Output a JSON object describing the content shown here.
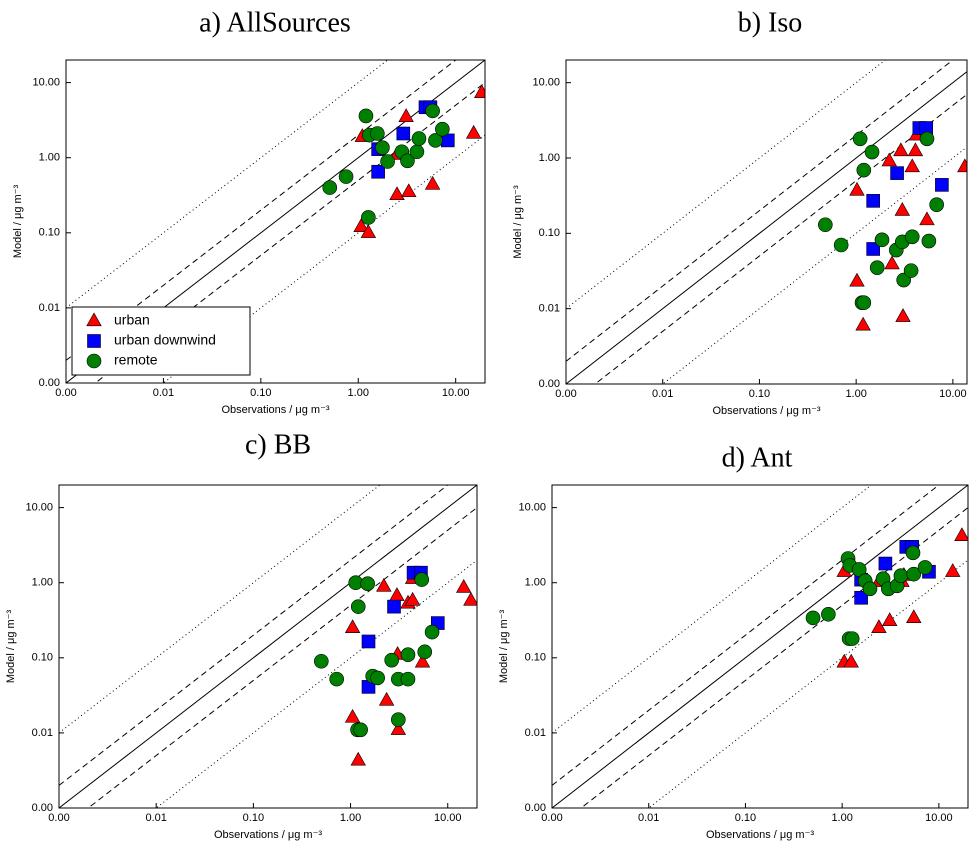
{
  "chart_data": [
    {
      "type": "scatter",
      "title": "a) AllSources",
      "x_label": "Observations / μg m⁻³",
      "y_label": "Model / μg m⁻³",
      "xscale": "log",
      "yscale": "log",
      "xlim": [
        0.001,
        20
      ],
      "ylim": [
        0.001,
        20
      ],
      "xticks": [
        {
          "value": 0.001,
          "label": "0.00"
        },
        0.01,
        {
          "value": 0.1,
          "label": "0.10"
        },
        {
          "value": 1,
          "label": "1.00"
        },
        {
          "value": 10,
          "label": "10.00"
        }
      ],
      "yticks": [
        {
          "value": 0.001,
          "label": "0.00"
        },
        0.01,
        {
          "value": 0.1,
          "label": "0.10"
        },
        {
          "value": 1,
          "label": "1.00"
        },
        {
          "value": 10,
          "label": "10.00"
        }
      ],
      "reference_lines": [
        {
          "ratio": 1,
          "style": "solid"
        },
        {
          "ratio": 2,
          "style": "dashed"
        },
        {
          "ratio": 0.5,
          "style": "dashed"
        },
        {
          "ratio": 10,
          "style": "dotted"
        },
        {
          "ratio": 0.1,
          "style": "dotted"
        }
      ],
      "legend": "lower left",
      "series": [
        {
          "name": "urban",
          "color": "#ff0000",
          "marker": "triangle",
          "x": [
            1.1,
            1.07,
            1.27,
            2.5,
            3.1,
            2.5,
            3.3,
            5.8,
            15.3,
            18.5
          ],
          "y": [
            1.9,
            0.12,
            0.1,
            1.1,
            3.5,
            0.32,
            0.35,
            0.44,
            2.1,
            7.3
          ]
        },
        {
          "name": "urban downwind",
          "color": "#0000ff",
          "marker": "square",
          "x": [
            4.9,
            5.5,
            1.6,
            1.6,
            2.9,
            8.3
          ],
          "y": [
            4.7,
            4.7,
            1.3,
            0.65,
            2.1,
            1.7
          ]
        },
        {
          "name": "remote",
          "color": "#008000",
          "marker": "circle",
          "x": [
            0.51,
            0.75,
            1.2,
            1.3,
            1.57,
            1.77,
            2.0,
            1.27,
            2.8,
            3.2,
            4.0,
            4.2,
            5.8,
            6.2,
            7.3
          ],
          "y": [
            0.4,
            0.56,
            3.6,
            2.0,
            2.1,
            1.36,
            0.89,
            0.16,
            1.2,
            0.91,
            1.2,
            1.8,
            4.2,
            1.7,
            2.4
          ]
        }
      ]
    },
    {
      "type": "scatter",
      "title": "b) Iso",
      "x_label": "Observations / μg m⁻³",
      "y_label": "Model / μg m⁻³",
      "xscale": "log",
      "yscale": "log",
      "xlim": [
        0.001,
        14
      ],
      "ylim": [
        0.001,
        20
      ],
      "xticks": [
        {
          "value": 0.001,
          "label": "0.00"
        },
        0.01,
        {
          "value": 0.1,
          "label": "0.10"
        },
        {
          "value": 1,
          "label": "1.00"
        },
        {
          "value": 10,
          "label": "10.00"
        }
      ],
      "yticks": [
        {
          "value": 0.001,
          "label": "0.00"
        },
        0.01,
        {
          "value": 0.1,
          "label": "0.10"
        },
        {
          "value": 1,
          "label": "1.00"
        },
        {
          "value": 10,
          "label": "10.00"
        }
      ],
      "reference_lines": [
        {
          "ratio": 1,
          "style": "solid"
        },
        {
          "ratio": 2,
          "style": "dashed"
        },
        {
          "ratio": 0.5,
          "style": "dashed"
        },
        {
          "ratio": 10,
          "style": "dotted"
        },
        {
          "ratio": 0.1,
          "style": "dotted"
        }
      ],
      "series": [
        {
          "color": "#ff0000",
          "marker": "triangle",
          "x": [
            1.02,
            1.02,
            1.18,
            2.2,
            2.9,
            3.0,
            3.05,
            2.35,
            3.8,
            4.1,
            4.2,
            5.4,
            13.3
          ],
          "y": [
            0.37,
            0.023,
            0.006,
            0.91,
            1.24,
            0.2,
            0.0078,
            0.039,
            0.76,
            1.24,
            2.0,
            0.15,
            0.76
          ]
        },
        {
          "color": "#0000ff",
          "marker": "square",
          "x": [
            1.5,
            1.5,
            2.65,
            4.5,
            5.3,
            7.7
          ],
          "y": [
            0.27,
            0.062,
            0.63,
            2.5,
            2.5,
            0.44
          ]
        },
        {
          "color": "#008000",
          "marker": "circle",
          "x": [
            0.48,
            0.7,
            1.1,
            1.2,
            1.46,
            1.65,
            1.85,
            1.15,
            1.2,
            2.6,
            3.0,
            3.1,
            3.8,
            3.7,
            5.4,
            5.65,
            6.8
          ],
          "y": [
            0.13,
            0.07,
            1.8,
            0.69,
            1.2,
            0.035,
            0.082,
            0.012,
            0.012,
            0.06,
            0.077,
            0.024,
            0.09,
            0.032,
            1.8,
            0.079,
            0.24
          ]
        }
      ]
    },
    {
      "type": "scatter",
      "title": "c) BB",
      "x_label": "Observations / μg m⁻³",
      "y_label": "Model / μg m⁻³",
      "xscale": "log",
      "yscale": "log",
      "xlim": [
        0.001,
        20
      ],
      "ylim": [
        0.001,
        20
      ],
      "xticks": [
        {
          "value": 0.001,
          "label": "0.00"
        },
        0.01,
        {
          "value": 0.1,
          "label": "0.10"
        },
        {
          "value": 1,
          "label": "1.00"
        },
        {
          "value": 10,
          "label": "10.00"
        }
      ],
      "yticks": [
        {
          "value": 0.001,
          "label": "0.00"
        },
        0.01,
        {
          "value": 0.1,
          "label": "0.10"
        },
        {
          "value": 1,
          "label": "1.00"
        },
        {
          "value": 10,
          "label": "10.00"
        }
      ],
      "reference_lines": [
        {
          "ratio": 1,
          "style": "solid"
        },
        {
          "ratio": 2,
          "style": "dashed"
        },
        {
          "ratio": 0.5,
          "style": "dashed"
        },
        {
          "ratio": 10,
          "style": "dotted"
        },
        {
          "ratio": 0.1,
          "style": "dotted"
        }
      ],
      "series": [
        {
          "color": "#ff0000",
          "marker": "triangle",
          "x": [
            1.05,
            1.05,
            1.2,
            2.2,
            3.0,
            3.05,
            3.1,
            2.35,
            3.9,
            4.35,
            4.35,
            5.5,
            14.6,
            17.3
          ],
          "y": [
            0.25,
            0.016,
            0.0043,
            0.89,
            0.67,
            0.11,
            0.011,
            0.027,
            0.53,
            0.58,
            1.13,
            0.087,
            0.86,
            0.58
          ]
        },
        {
          "color": "#0000ff",
          "marker": "square",
          "x": [
            1.53,
            1.53,
            2.8,
            4.45,
            5.3,
            7.9
          ],
          "y": [
            0.165,
            0.041,
            0.48,
            1.36,
            1.36,
            0.29
          ]
        },
        {
          "color": "#008000",
          "marker": "circle",
          "x": [
            0.5,
            0.72,
            1.13,
            1.2,
            1.5,
            1.69,
            1.9,
            1.18,
            1.27,
            2.65,
            3.1,
            3.1,
            3.9,
            3.9,
            5.4,
            5.8,
            6.9
          ],
          "y": [
            0.09,
            0.052,
            1.0,
            0.48,
            0.97,
            0.057,
            0.054,
            0.011,
            0.011,
            0.093,
            0.052,
            0.015,
            0.11,
            0.052,
            1.1,
            0.12,
            0.22
          ]
        }
      ]
    },
    {
      "type": "scatter",
      "title": "d) Ant",
      "x_label": "Observations / μg m⁻³",
      "y_label": "Model / μg m⁻³",
      "xscale": "log",
      "yscale": "log",
      "xlim": [
        0.001,
        20
      ],
      "ylim": [
        0.001,
        20
      ],
      "xticks": [
        {
          "value": 0.001,
          "label": "0.00"
        },
        0.01,
        {
          "value": 0.1,
          "label": "0.10"
        },
        {
          "value": 1,
          "label": "1.00"
        },
        {
          "value": 10,
          "label": "10.00"
        }
      ],
      "yticks": [
        {
          "value": 0.001,
          "label": "0.00"
        },
        0.01,
        {
          "value": 0.1,
          "label": "0.10"
        },
        {
          "value": 1,
          "label": "1.00"
        },
        {
          "value": 10,
          "label": "10.00"
        }
      ],
      "reference_lines": [
        {
          "ratio": 1,
          "style": "solid"
        },
        {
          "ratio": 2,
          "style": "dashed"
        },
        {
          "ratio": 0.5,
          "style": "dashed"
        },
        {
          "ratio": 10,
          "style": "dotted"
        },
        {
          "ratio": 0.1,
          "style": "dotted"
        }
      ],
      "series": [
        {
          "color": "#ff0000",
          "marker": "triangle",
          "x": [
            1.05,
            1.05,
            1.24,
            2.4,
            2.4,
            3.1,
            4.15,
            4.35,
            5.5,
            13.9,
            17.3
          ],
          "y": [
            1.4,
            0.087,
            0.087,
            1.03,
            0.25,
            0.31,
            1.03,
            1.24,
            0.34,
            1.4,
            4.2
          ]
        },
        {
          "color": "#0000ff",
          "marker": "square",
          "x": [
            1.57,
            1.57,
            2.8,
            4.6,
            5.3,
            7.9
          ],
          "y": [
            1.1,
            0.63,
            1.8,
            3.0,
            3.0,
            1.4
          ]
        },
        {
          "color": "#008000",
          "marker": "circle",
          "x": [
            0.5,
            0.72,
            1.15,
            1.2,
            1.5,
            1.73,
            1.94,
            1.18,
            1.27,
            2.65,
            3.0,
            3.7,
            4.05,
            5.4,
            5.5,
            7.2
          ],
          "y": [
            0.34,
            0.38,
            2.1,
            1.7,
            1.5,
            1.06,
            0.83,
            0.18,
            0.18,
            1.13,
            0.83,
            0.91,
            1.24,
            2.5,
            1.3,
            1.6
          ]
        }
      ]
    }
  ]
}
